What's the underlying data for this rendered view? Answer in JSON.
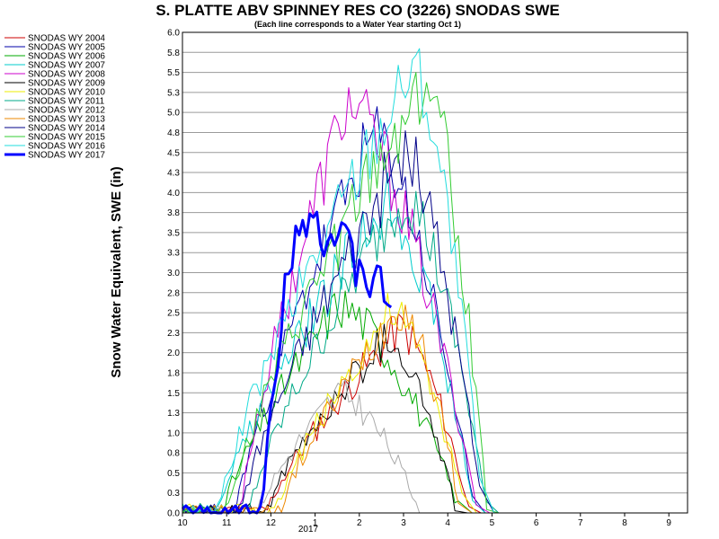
{
  "chart_data": {
    "type": "line",
    "title": "S. PLATTE ABV SPINNEY RES CO (3226) SNODAS SWE",
    "subtitle": "(Each line corresponds to a Water Year starting Oct 1)",
    "ylabel": "Snow Water Equivalent, SWE (in)",
    "xlabel": "",
    "ylim": [
      0,
      6.0
    ],
    "y_ticks": [
      "0.0",
      "0.3",
      "0.5",
      "0.8",
      "1.0",
      "1.3",
      "1.5",
      "1.8",
      "2.0",
      "2.3",
      "2.5",
      "2.8",
      "3.0",
      "3.3",
      "3.5",
      "3.8",
      "4.0",
      "4.3",
      "4.5",
      "4.8",
      "5.0",
      "5.3",
      "5.5",
      "5.8",
      "6.0"
    ],
    "x_tick_labels": [
      "10",
      "11",
      "12",
      "1",
      "2",
      "3",
      "4",
      "5",
      "6",
      "7",
      "8",
      "9"
    ],
    "x_year_label": "2017",
    "grid": true,
    "legend_position": "left",
    "series": [
      {
        "name": "SNODAS WY 2004",
        "color": "#cc0000",
        "width": 1,
        "peak_month": 4.9,
        "peak": 2.3,
        "start": 1.9,
        "melt_end": 6.5,
        "seed": 11
      },
      {
        "name": "SNODAS WY 2005",
        "color": "#0000aa",
        "width": 1,
        "peak_month": 4.3,
        "peak": 4.7,
        "start": 1.2,
        "melt_end": 6.6,
        "seed": 23
      },
      {
        "name": "SNODAS WY 2006",
        "color": "#00aa00",
        "width": 1,
        "peak_month": 3.5,
        "peak": 2.6,
        "start": 0.9,
        "melt_end": 6.3,
        "seed": 31
      },
      {
        "name": "SNODAS WY 2007",
        "color": "#00cccc",
        "width": 1,
        "peak_month": 4.6,
        "peak": 3.9,
        "start": 0.8,
        "melt_end": 6.6,
        "seed": 47
      },
      {
        "name": "SNODAS WY 2008",
        "color": "#cc00cc",
        "width": 1,
        "peak_month": 3.7,
        "peak": 5.1,
        "start": 1.3,
        "melt_end": 6.7,
        "seed": 53
      },
      {
        "name": "SNODAS WY 2009",
        "color": "#000000",
        "width": 1,
        "peak_month": 4.6,
        "peak": 2.2,
        "start": 1.9,
        "melt_end": 6.2,
        "seed": 61
      },
      {
        "name": "SNODAS WY 2010",
        "color": "#eeee00",
        "width": 1,
        "peak_month": 4.7,
        "peak": 2.5,
        "start": 2.1,
        "melt_end": 6.4,
        "seed": 73
      },
      {
        "name": "SNODAS WY 2011",
        "color": "#00aa88",
        "width": 1,
        "peak_month": 5.0,
        "peak": 4.0,
        "start": 1.5,
        "melt_end": 6.9,
        "seed": 79
      },
      {
        "name": "SNODAS WY 2012",
        "color": "#aaaaaa",
        "width": 1,
        "peak_month": 3.5,
        "peak": 1.5,
        "start": 1.7,
        "melt_end": 5.4,
        "seed": 83
      },
      {
        "name": "SNODAS WY 2013",
        "color": "#ee8800",
        "width": 1,
        "peak_month": 4.9,
        "peak": 2.6,
        "start": 2.2,
        "melt_end": 6.3,
        "seed": 97
      },
      {
        "name": "SNODAS WY 2014",
        "color": "#000088",
        "width": 1,
        "peak_month": 5.0,
        "peak": 4.5,
        "start": 1.3,
        "melt_end": 6.8,
        "seed": 101
      },
      {
        "name": "SNODAS WY 2015",
        "color": "#33cc33",
        "width": 1,
        "peak_month": 5.5,
        "peak": 5.4,
        "start": 1.0,
        "melt_end": 6.9,
        "seed": 113
      },
      {
        "name": "SNODAS WY 2016",
        "color": "#22dddd",
        "width": 1,
        "peak_month": 5.2,
        "peak": 5.6,
        "start": 0.8,
        "melt_end": 6.8,
        "seed": 127
      },
      {
        "name": "SNODAS WY 2017",
        "color": "#0000ff",
        "width": 3,
        "peak_month": 2.6,
        "peak": 3.9,
        "start": 1.8,
        "melt_end": null,
        "end_month": 4.75,
        "end_value": 2.6,
        "seed": 131
      }
    ]
  }
}
